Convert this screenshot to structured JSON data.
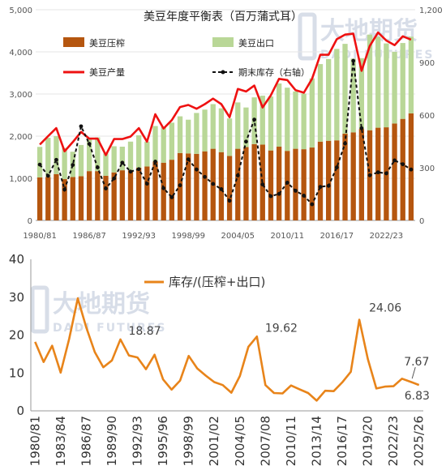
{
  "watermark": {
    "text": "大地期货",
    "subtext": "DADI FUTURES"
  },
  "chart_data": [
    {
      "type": "bar",
      "title": "美豆年度平衡表（百万蒲式耳）",
      "ylim": [
        0,
        5000
      ],
      "y2lim": [
        0,
        1200
      ],
      "yticks": [
        "0",
        "1,000",
        "2,000",
        "3,000",
        "4,000",
        "5,000"
      ],
      "y2ticks": [
        "0",
        "300",
        "600",
        "900",
        "1,200"
      ],
      "xtick_labels": [
        "1980/81",
        "1986/87",
        "1992/93",
        "1998/99",
        "2004/05",
        "2010/11",
        "2016/17",
        "2022/23"
      ],
      "colors": {
        "crush": "#b5560f",
        "export": "#b9d797",
        "production": "#ee1111",
        "stocks": "#111111"
      },
      "series": [
        {
          "name": "美豆压榨",
          "key": "crush",
          "values": [
            1020,
            1030,
            1100,
            980,
            1030,
            1050,
            1170,
            1170,
            1060,
            1140,
            1190,
            1190,
            1250,
            1280,
            1400,
            1370,
            1440,
            1600,
            1590,
            1580,
            1640,
            1700,
            1620,
            1530,
            1700,
            1740,
            1810,
            1800,
            1660,
            1750,
            1650,
            1700,
            1690,
            1730,
            1870,
            1890,
            1900,
            2060,
            2090,
            2170,
            2140,
            2200,
            2210,
            2300,
            2410,
            2540
          ]
        },
        {
          "name": "美豆出口",
          "key": "export",
          "values": [
            725,
            930,
            900,
            740,
            600,
            740,
            760,
            800,
            530,
            620,
            560,
            680,
            770,
            590,
            840,
            850,
            880,
            870,
            800,
            970,
            990,
            1060,
            1040,
            890,
            1100,
            940,
            1110,
            1160,
            1280,
            1500,
            1500,
            1360,
            1320,
            1640,
            1840,
            1940,
            2170,
            2130,
            1750,
            1680,
            2270,
            2160,
            1990,
            1700,
            1800,
            1820
          ]
        },
        {
          "name": "美豆产量",
          "key": "production",
          "values": [
            1800,
            2000,
            2190,
            1640,
            1860,
            2100,
            1940,
            1940,
            1550,
            1930,
            1930,
            1990,
            2190,
            1870,
            2520,
            2180,
            2380,
            2690,
            2740,
            2650,
            2760,
            2890,
            2760,
            2450,
            3120,
            3060,
            3200,
            2680,
            2970,
            3360,
            3330,
            3090,
            3030,
            3360,
            3930,
            3930,
            4300,
            4410,
            4430,
            3550,
            4140,
            4460,
            4270,
            4160,
            4370,
            4290
          ]
        },
        {
          "name": "期末库存（右轴）",
          "key": "stocks",
          "axis": "right",
          "values": [
            318,
            254,
            345,
            176,
            316,
            536,
            436,
            302,
            182,
            239,
            329,
            278,
            292,
            209,
            335,
            183,
            132,
            200,
            348,
            290,
            248,
            208,
            178,
            112,
            256,
            449,
            574,
            205,
            138,
            151,
            215,
            169,
            141,
            92,
            191,
            197,
            302,
            438,
            909,
            525,
            257,
            274,
            268,
            342,
            320,
            290
          ]
        }
      ]
    },
    {
      "type": "line",
      "title": "",
      "ylim": [
        0,
        40
      ],
      "yticks": [
        "0",
        "10",
        "20",
        "30",
        "40"
      ],
      "xtick_labels": [
        "1980/81",
        "1983/84",
        "1986/87",
        "1989/90",
        "1992/93",
        "1995/96",
        "1998/99",
        "2001/02",
        "2004/05",
        "2007/08",
        "2010/11",
        "2013/14",
        "2016/17",
        "2019/20",
        "2022/23",
        "2025/26"
      ],
      "color": "#e8841a",
      "series": [
        {
          "name": "库存/(压榨+出口)",
          "values": [
            18.2,
            12.9,
            17.2,
            10.1,
            19.0,
            29.7,
            22.0,
            15.5,
            11.5,
            13.3,
            18.87,
            14.6,
            14.1,
            11.0,
            14.8,
            8.3,
            5.6,
            8.0,
            14.5,
            11.2,
            9.3,
            7.6,
            6.8,
            4.8,
            9.2,
            16.9,
            19.62,
            6.8,
            4.7,
            4.6,
            6.7,
            5.7,
            4.7,
            2.7,
            5.3,
            5.2,
            7.5,
            10.3,
            24.06,
            13.7,
            5.9,
            6.4,
            6.5,
            8.5,
            7.67,
            6.83
          ]
        }
      ],
      "annotations": [
        {
          "label": "18.87",
          "index": 10
        },
        {
          "label": "19.62",
          "index": 26
        },
        {
          "label": "24.06",
          "index": 38
        },
        {
          "label": "7.67",
          "index": 44
        },
        {
          "label": "6.83",
          "index": 45
        }
      ]
    }
  ]
}
